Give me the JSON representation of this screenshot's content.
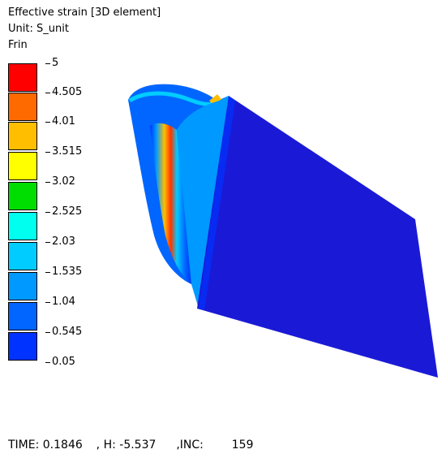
{
  "header": {
    "title": "Effective strain [3D element]",
    "unit": "Unit: S_unit",
    "state": "Frin"
  },
  "legend": {
    "labels": [
      "5",
      "4.505",
      "4.01",
      "3.515",
      "3.02",
      "2.525",
      "2.03",
      "1.535",
      "1.04",
      "0.545",
      "0.05"
    ],
    "colors": [
      "#ff0000",
      "#ff6a00",
      "#ffbf00",
      "#ffff00",
      "#00dd00",
      "#00ffee",
      "#00ccff",
      "#0099ff",
      "#0066ff",
      "#0033ff",
      "#0000ff"
    ]
  },
  "footer": {
    "time_label": "TIME: 0.1846",
    "h_label": ", H: -5.537",
    "inc_label": ",INC:",
    "inc_value": "159"
  }
}
